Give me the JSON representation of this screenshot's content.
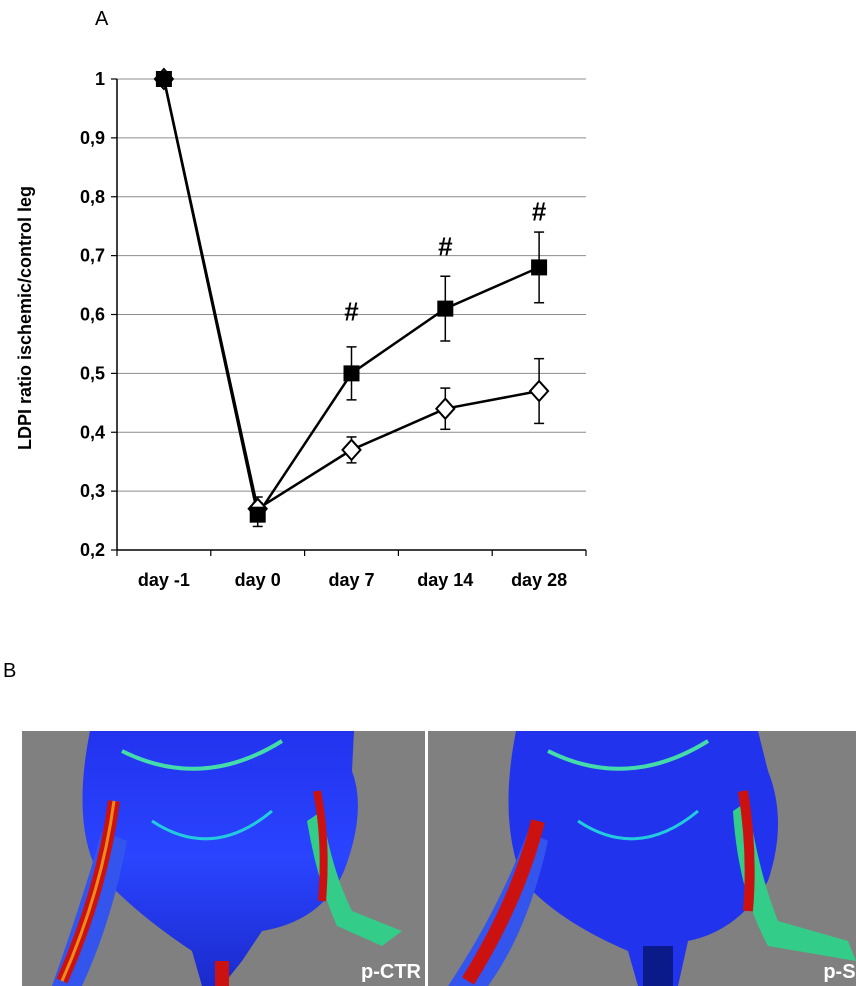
{
  "panel_a_label": "A",
  "panel_b_label": "B",
  "chart_data": {
    "type": "line",
    "title": "",
    "xlabel": "",
    "ylabel": "LDPI ratio ischemic/control leg",
    "categories": [
      "day -1",
      "day 0",
      "day 7",
      "day 14",
      "day 28"
    ],
    "ylim": [
      0.2,
      1.0
    ],
    "yticks": [
      0.2,
      0.3,
      0.4,
      0.5,
      0.6,
      0.7,
      0.8,
      0.9,
      1.0
    ],
    "ytick_labels": [
      "0,2",
      "0,3",
      "0,4",
      "0,5",
      "0,6",
      "0,7",
      "0,8",
      "0,9",
      "1"
    ],
    "grid": true,
    "series": [
      {
        "marker": "filled-square",
        "color": "#000000",
        "values": [
          1.0,
          0.26,
          0.5,
          0.61,
          0.68
        ],
        "errors": [
          0,
          0.02,
          0.045,
          0.055,
          0.06
        ]
      },
      {
        "marker": "open-diamond",
        "color": "#000000",
        "values": [
          1.0,
          0.27,
          0.37,
          0.44,
          0.47
        ],
        "errors": [
          0,
          0.02,
          0.022,
          0.035,
          0.055
        ]
      }
    ],
    "annotations": [
      {
        "category": "day 7",
        "y": 0.59,
        "text": "#"
      },
      {
        "category": "day 14",
        "y": 0.7,
        "text": "#"
      },
      {
        "category": "day 28",
        "y": 0.76,
        "text": "#"
      }
    ]
  },
  "images": [
    {
      "label": "p-CTR"
    },
    {
      "label": "p-SN"
    }
  ]
}
